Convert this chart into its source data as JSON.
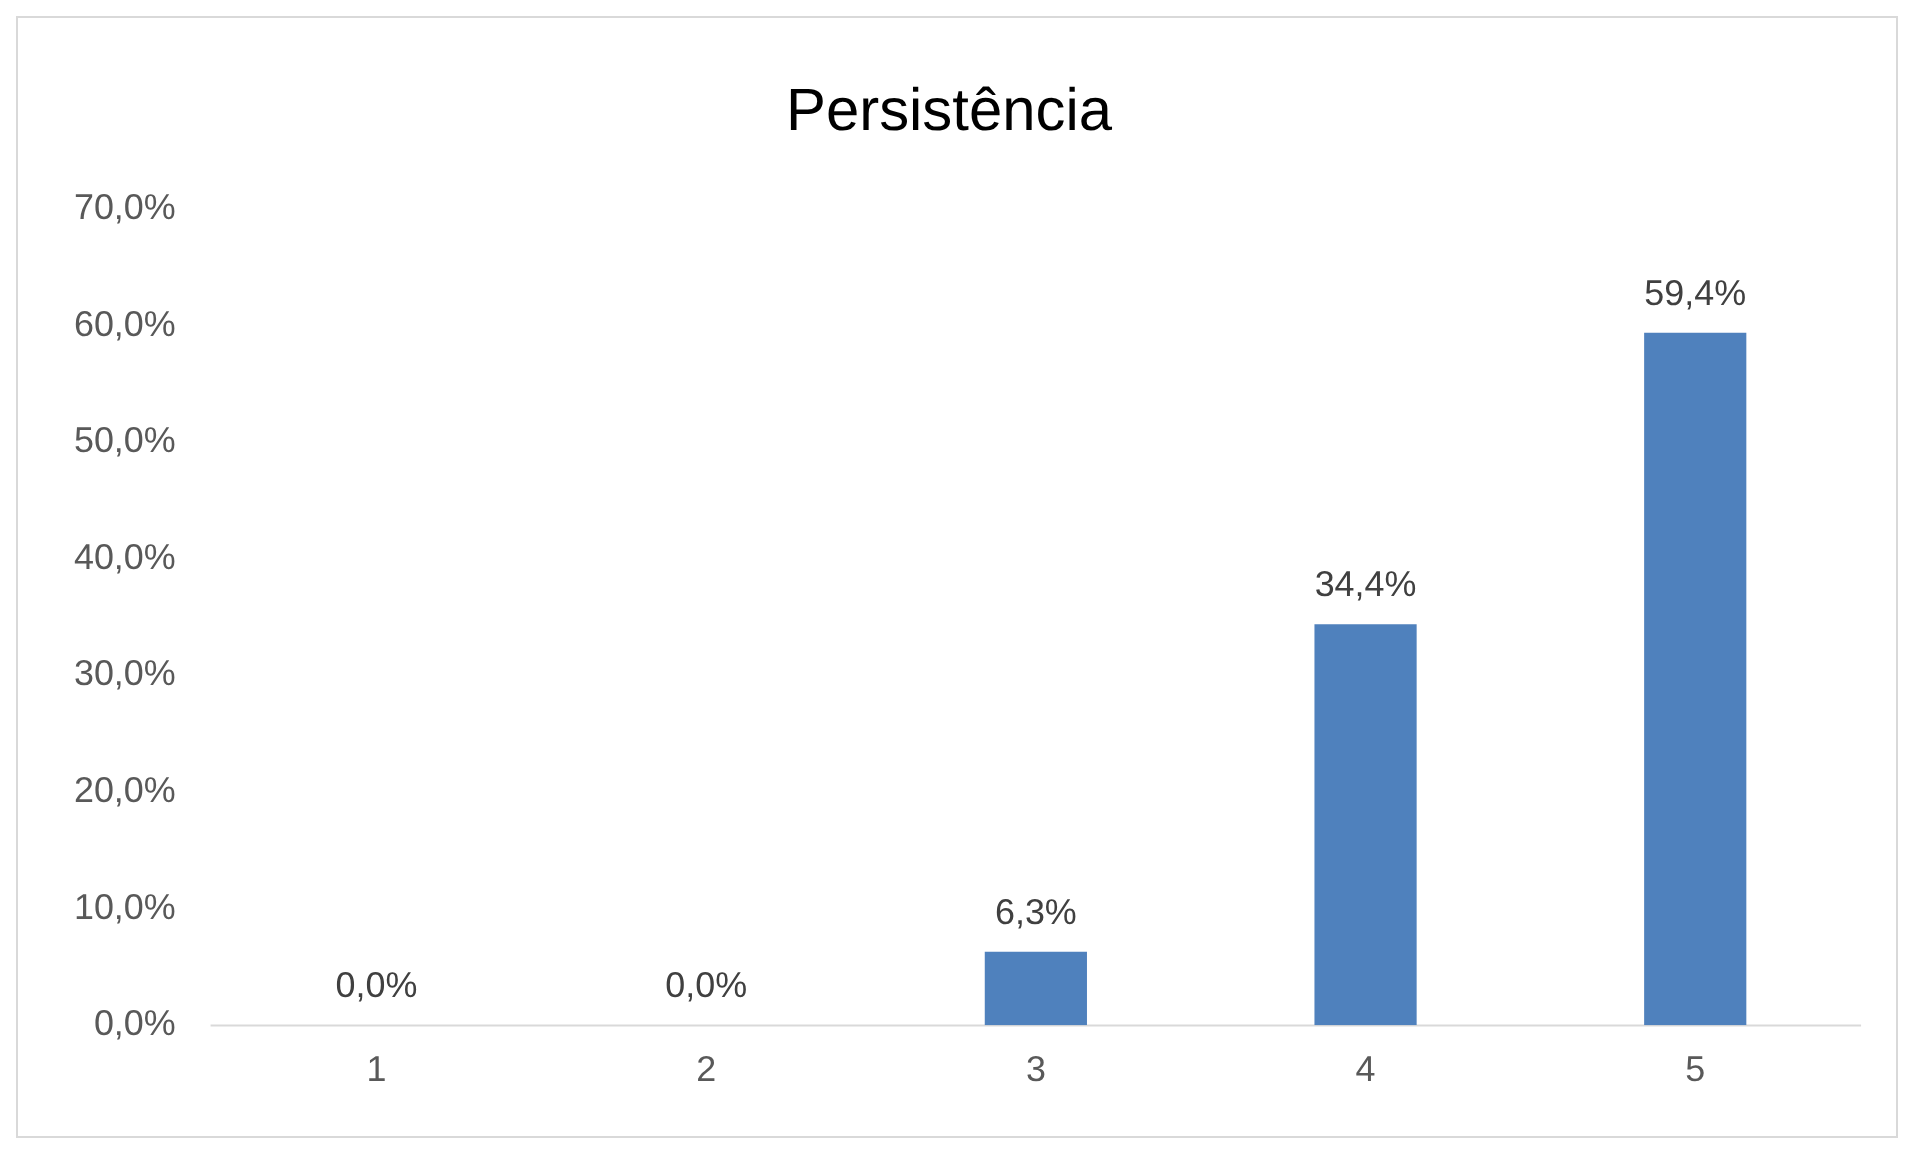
{
  "chart_data": {
    "type": "bar",
    "title": "Persistência",
    "categories": [
      "1",
      "2",
      "3",
      "4",
      "5"
    ],
    "values": [
      0,
      0,
      6.3,
      34.4,
      59.4
    ],
    "value_labels": [
      "0,0%",
      "0,0%",
      "6,3%",
      "34,4%",
      "59,4%"
    ],
    "color": "#4f81bd",
    "ylim": [
      0,
      70
    ],
    "yticks": [
      {
        "value": 0,
        "label": "0,0%"
      },
      {
        "value": 10,
        "label": "10,0%"
      },
      {
        "value": 20,
        "label": "20,0%"
      },
      {
        "value": 30,
        "label": "30,0%"
      },
      {
        "value": 40,
        "label": "40,0%"
      },
      {
        "value": 50,
        "label": "50,0%"
      },
      {
        "value": 60,
        "label": "60,0%"
      },
      {
        "value": 70,
        "label": "70,0%"
      }
    ],
    "legend": false
  }
}
